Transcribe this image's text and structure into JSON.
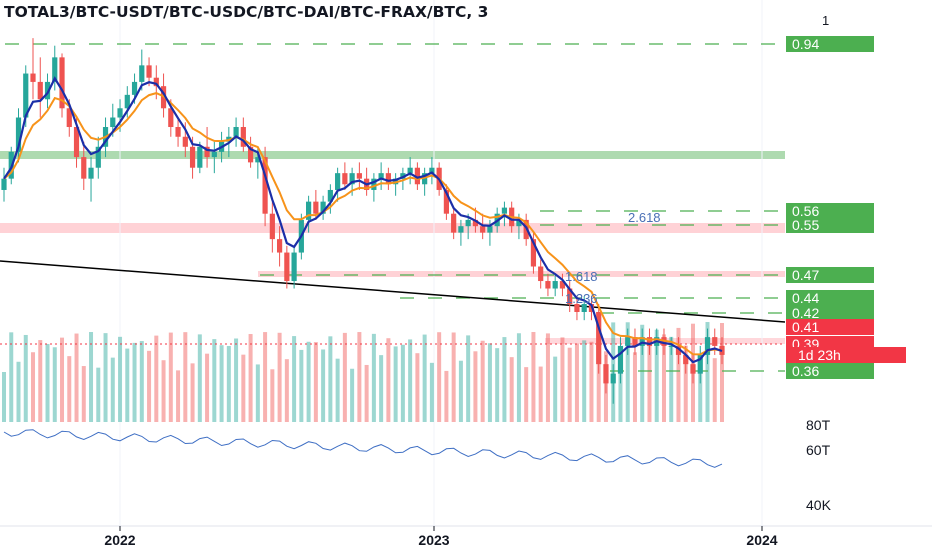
{
  "header": {
    "title": "TOTAL3/BTC-USDT/BTC-USDC/BTC-DAI/BTC-FRAX/BTC, 3",
    "top_scale_label": "1"
  },
  "colors": {
    "up": "#26a69a",
    "down": "#ef5350",
    "ema_fast": "#1b2fa8",
    "ema_slow": "#f7931a",
    "level_label_bg": "#4caf50",
    "price_label_bg": "#f23645",
    "resistance_zone": "#ffcdd2",
    "support_zone": "#a5d6a7",
    "fib_text": "#4a6fb5",
    "secondary_line": "#3f6fc4"
  },
  "chart_data": {
    "type": "candlestick",
    "x_axis": {
      "labels": [
        "2022",
        "2023",
        "2024"
      ],
      "range": [
        "2021-07",
        "2024-02"
      ]
    },
    "y_axis": {
      "scale": "log",
      "range": [
        0.3,
        1.0
      ]
    },
    "price_labels": [
      {
        "value": "0.94",
        "kind": "level"
      },
      {
        "value": "0.56",
        "kind": "level"
      },
      {
        "value": "0.55",
        "kind": "level"
      },
      {
        "value": "0.47",
        "kind": "level"
      },
      {
        "value": "0.44",
        "kind": "level"
      },
      {
        "value": "0.42",
        "kind": "level"
      },
      {
        "value": "0.41",
        "kind": "price"
      },
      {
        "value": "0.39",
        "kind": "price"
      },
      {
        "value": "0.36",
        "kind": "level"
      }
    ],
    "countdown": "1d 23h",
    "fib_labels": [
      "2.618",
      "1.618",
      "1.236"
    ],
    "secondary_axis_labels": [
      "80T",
      "60T",
      "40K"
    ],
    "candles_weekly": [
      [
        0.62,
        0.66,
        0.6,
        0.64
      ],
      [
        0.64,
        0.7,
        0.63,
        0.69
      ],
      [
        0.69,
        0.78,
        0.67,
        0.76
      ],
      [
        0.76,
        0.88,
        0.74,
        0.86
      ],
      [
        0.86,
        0.95,
        0.8,
        0.84
      ],
      [
        0.84,
        0.9,
        0.76,
        0.8
      ],
      [
        0.8,
        0.86,
        0.78,
        0.84
      ],
      [
        0.84,
        0.93,
        0.82,
        0.9
      ],
      [
        0.9,
        0.91,
        0.76,
        0.78
      ],
      [
        0.78,
        0.8,
        0.72,
        0.74
      ],
      [
        0.74,
        0.76,
        0.66,
        0.68
      ],
      [
        0.68,
        0.71,
        0.62,
        0.64
      ],
      [
        0.64,
        0.68,
        0.6,
        0.66
      ],
      [
        0.66,
        0.72,
        0.64,
        0.7
      ],
      [
        0.7,
        0.76,
        0.68,
        0.74
      ],
      [
        0.74,
        0.79,
        0.72,
        0.76
      ],
      [
        0.76,
        0.8,
        0.73,
        0.78
      ],
      [
        0.78,
        0.83,
        0.76,
        0.81
      ],
      [
        0.81,
        0.86,
        0.79,
        0.84
      ],
      [
        0.84,
        0.92,
        0.82,
        0.88
      ],
      [
        0.88,
        0.9,
        0.83,
        0.85
      ],
      [
        0.85,
        0.88,
        0.8,
        0.83
      ],
      [
        0.83,
        0.86,
        0.76,
        0.78
      ],
      [
        0.78,
        0.8,
        0.72,
        0.74
      ],
      [
        0.74,
        0.76,
        0.7,
        0.72
      ],
      [
        0.72,
        0.75,
        0.68,
        0.7
      ],
      [
        0.7,
        0.72,
        0.64,
        0.66
      ],
      [
        0.66,
        0.71,
        0.65,
        0.7
      ],
      [
        0.7,
        0.74,
        0.66,
        0.68
      ],
      [
        0.68,
        0.71,
        0.65,
        0.69
      ],
      [
        0.69,
        0.73,
        0.67,
        0.71
      ],
      [
        0.71,
        0.74,
        0.68,
        0.72
      ],
      [
        0.72,
        0.76,
        0.7,
        0.74
      ],
      [
        0.74,
        0.76,
        0.69,
        0.7
      ],
      [
        0.7,
        0.72,
        0.66,
        0.67
      ],
      [
        0.67,
        0.7,
        0.64,
        0.68
      ],
      [
        0.68,
        0.7,
        0.56,
        0.58
      ],
      [
        0.58,
        0.6,
        0.52,
        0.54
      ],
      [
        0.54,
        0.56,
        0.5,
        0.52
      ],
      [
        0.52,
        0.53,
        0.47,
        0.48
      ],
      [
        0.48,
        0.53,
        0.47,
        0.52
      ],
      [
        0.52,
        0.58,
        0.51,
        0.57
      ],
      [
        0.57,
        0.61,
        0.55,
        0.6
      ],
      [
        0.6,
        0.62,
        0.57,
        0.58
      ],
      [
        0.58,
        0.61,
        0.57,
        0.6
      ],
      [
        0.6,
        0.63,
        0.58,
        0.62
      ],
      [
        0.62,
        0.66,
        0.6,
        0.65
      ],
      [
        0.65,
        0.67,
        0.62,
        0.63
      ],
      [
        0.63,
        0.66,
        0.61,
        0.65
      ],
      [
        0.65,
        0.67,
        0.62,
        0.64
      ],
      [
        0.64,
        0.66,
        0.61,
        0.62
      ],
      [
        0.62,
        0.65,
        0.6,
        0.64
      ],
      [
        0.64,
        0.67,
        0.62,
        0.65
      ],
      [
        0.65,
        0.66,
        0.62,
        0.63
      ],
      [
        0.63,
        0.65,
        0.61,
        0.64
      ],
      [
        0.64,
        0.66,
        0.62,
        0.65
      ],
      [
        0.65,
        0.68,
        0.63,
        0.66
      ],
      [
        0.66,
        0.67,
        0.62,
        0.63
      ],
      [
        0.63,
        0.66,
        0.61,
        0.65
      ],
      [
        0.65,
        0.68,
        0.63,
        0.66
      ],
      [
        0.66,
        0.67,
        0.61,
        0.62
      ],
      [
        0.62,
        0.63,
        0.57,
        0.58
      ],
      [
        0.58,
        0.59,
        0.54,
        0.55
      ],
      [
        0.55,
        0.57,
        0.53,
        0.56
      ],
      [
        0.56,
        0.58,
        0.54,
        0.57
      ],
      [
        0.57,
        0.59,
        0.55,
        0.56
      ],
      [
        0.56,
        0.58,
        0.54,
        0.55
      ],
      [
        0.55,
        0.57,
        0.53,
        0.56
      ],
      [
        0.56,
        0.59,
        0.55,
        0.58
      ],
      [
        0.58,
        0.6,
        0.56,
        0.59
      ],
      [
        0.59,
        0.6,
        0.55,
        0.56
      ],
      [
        0.56,
        0.58,
        0.54,
        0.57
      ],
      [
        0.57,
        0.58,
        0.53,
        0.54
      ],
      [
        0.54,
        0.55,
        0.49,
        0.5
      ],
      [
        0.5,
        0.51,
        0.47,
        0.48
      ],
      [
        0.48,
        0.49,
        0.46,
        0.47
      ],
      [
        0.47,
        0.49,
        0.46,
        0.48
      ],
      [
        0.48,
        0.49,
        0.46,
        0.47
      ],
      [
        0.47,
        0.48,
        0.44,
        0.45
      ],
      [
        0.45,
        0.46,
        0.43,
        0.44
      ],
      [
        0.44,
        0.46,
        0.43,
        0.45
      ],
      [
        0.45,
        0.46,
        0.43,
        0.44
      ],
      [
        0.44,
        0.45,
        0.37,
        0.38
      ],
      [
        0.38,
        0.39,
        0.35,
        0.36
      ],
      [
        0.36,
        0.38,
        0.34,
        0.37
      ],
      [
        0.37,
        0.41,
        0.36,
        0.4
      ],
      [
        0.4,
        0.42,
        0.39,
        0.41
      ],
      [
        0.41,
        0.42,
        0.39,
        0.4
      ],
      [
        0.4,
        0.42,
        0.39,
        0.41
      ],
      [
        0.41,
        0.42,
        0.39,
        0.4
      ],
      [
        0.4,
        0.42,
        0.39,
        0.41
      ],
      [
        0.41,
        0.42,
        0.39,
        0.4
      ],
      [
        0.4,
        0.41,
        0.39,
        0.4
      ],
      [
        0.4,
        0.41,
        0.38,
        0.39
      ],
      [
        0.39,
        0.4,
        0.37,
        0.38
      ],
      [
        0.38,
        0.39,
        0.36,
        0.37
      ],
      [
        0.37,
        0.4,
        0.36,
        0.39
      ],
      [
        0.39,
        0.42,
        0.38,
        0.41
      ],
      [
        0.41,
        0.42,
        0.39,
        0.4
      ],
      [
        0.4,
        0.41,
        0.38,
        0.39
      ]
    ]
  }
}
